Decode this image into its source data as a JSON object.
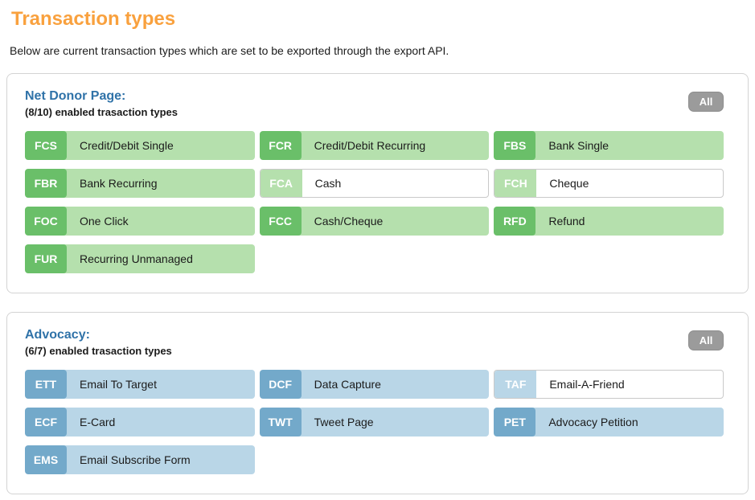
{
  "page": {
    "title": "Transaction types",
    "subtitle": "Below are current transaction types which are set to be exported through the export API."
  },
  "colors": {
    "title_orange": "#f9a13e",
    "heading_blue": "#2f72a8",
    "green_badge": "#6abf69",
    "green_light": "#b5e0ad",
    "blue_badge": "#73a9ca",
    "blue_light": "#b9d6e7",
    "all_button_gray": "#9b9b9b"
  },
  "sections": [
    {
      "name": "Net Donor Page:",
      "count_text": "(8/10) enabled trasaction types",
      "all_button_label": "All",
      "color_scheme": "green",
      "tiles": [
        {
          "code": "FCS",
          "label": "Credit/Debit Single",
          "enabled": true
        },
        {
          "code": "FCR",
          "label": "Credit/Debit Recurring",
          "enabled": true
        },
        {
          "code": "FBS",
          "label": "Bank Single",
          "enabled": true
        },
        {
          "code": "FBR",
          "label": "Bank Recurring",
          "enabled": true
        },
        {
          "code": "FCA",
          "label": "Cash",
          "enabled": false
        },
        {
          "code": "FCH",
          "label": "Cheque",
          "enabled": false
        },
        {
          "code": "FOC",
          "label": "One Click",
          "enabled": true
        },
        {
          "code": "FCC",
          "label": "Cash/Cheque",
          "enabled": true
        },
        {
          "code": "RFD",
          "label": "Refund",
          "enabled": true
        },
        {
          "code": "FUR",
          "label": "Recurring Unmanaged",
          "enabled": true
        }
      ]
    },
    {
      "name": "Advocacy:",
      "count_text": "(6/7) enabled trasaction types",
      "all_button_label": "All",
      "color_scheme": "blue",
      "tiles": [
        {
          "code": "ETT",
          "label": "Email To Target",
          "enabled": true
        },
        {
          "code": "DCF",
          "label": "Data Capture",
          "enabled": true
        },
        {
          "code": "TAF",
          "label": "Email-A-Friend",
          "enabled": false
        },
        {
          "code": "ECF",
          "label": "E-Card",
          "enabled": true
        },
        {
          "code": "TWT",
          "label": "Tweet Page",
          "enabled": true
        },
        {
          "code": "PET",
          "label": "Advocacy Petition",
          "enabled": true
        },
        {
          "code": "EMS",
          "label": "Email Subscribe Form",
          "enabled": true
        }
      ]
    }
  ]
}
